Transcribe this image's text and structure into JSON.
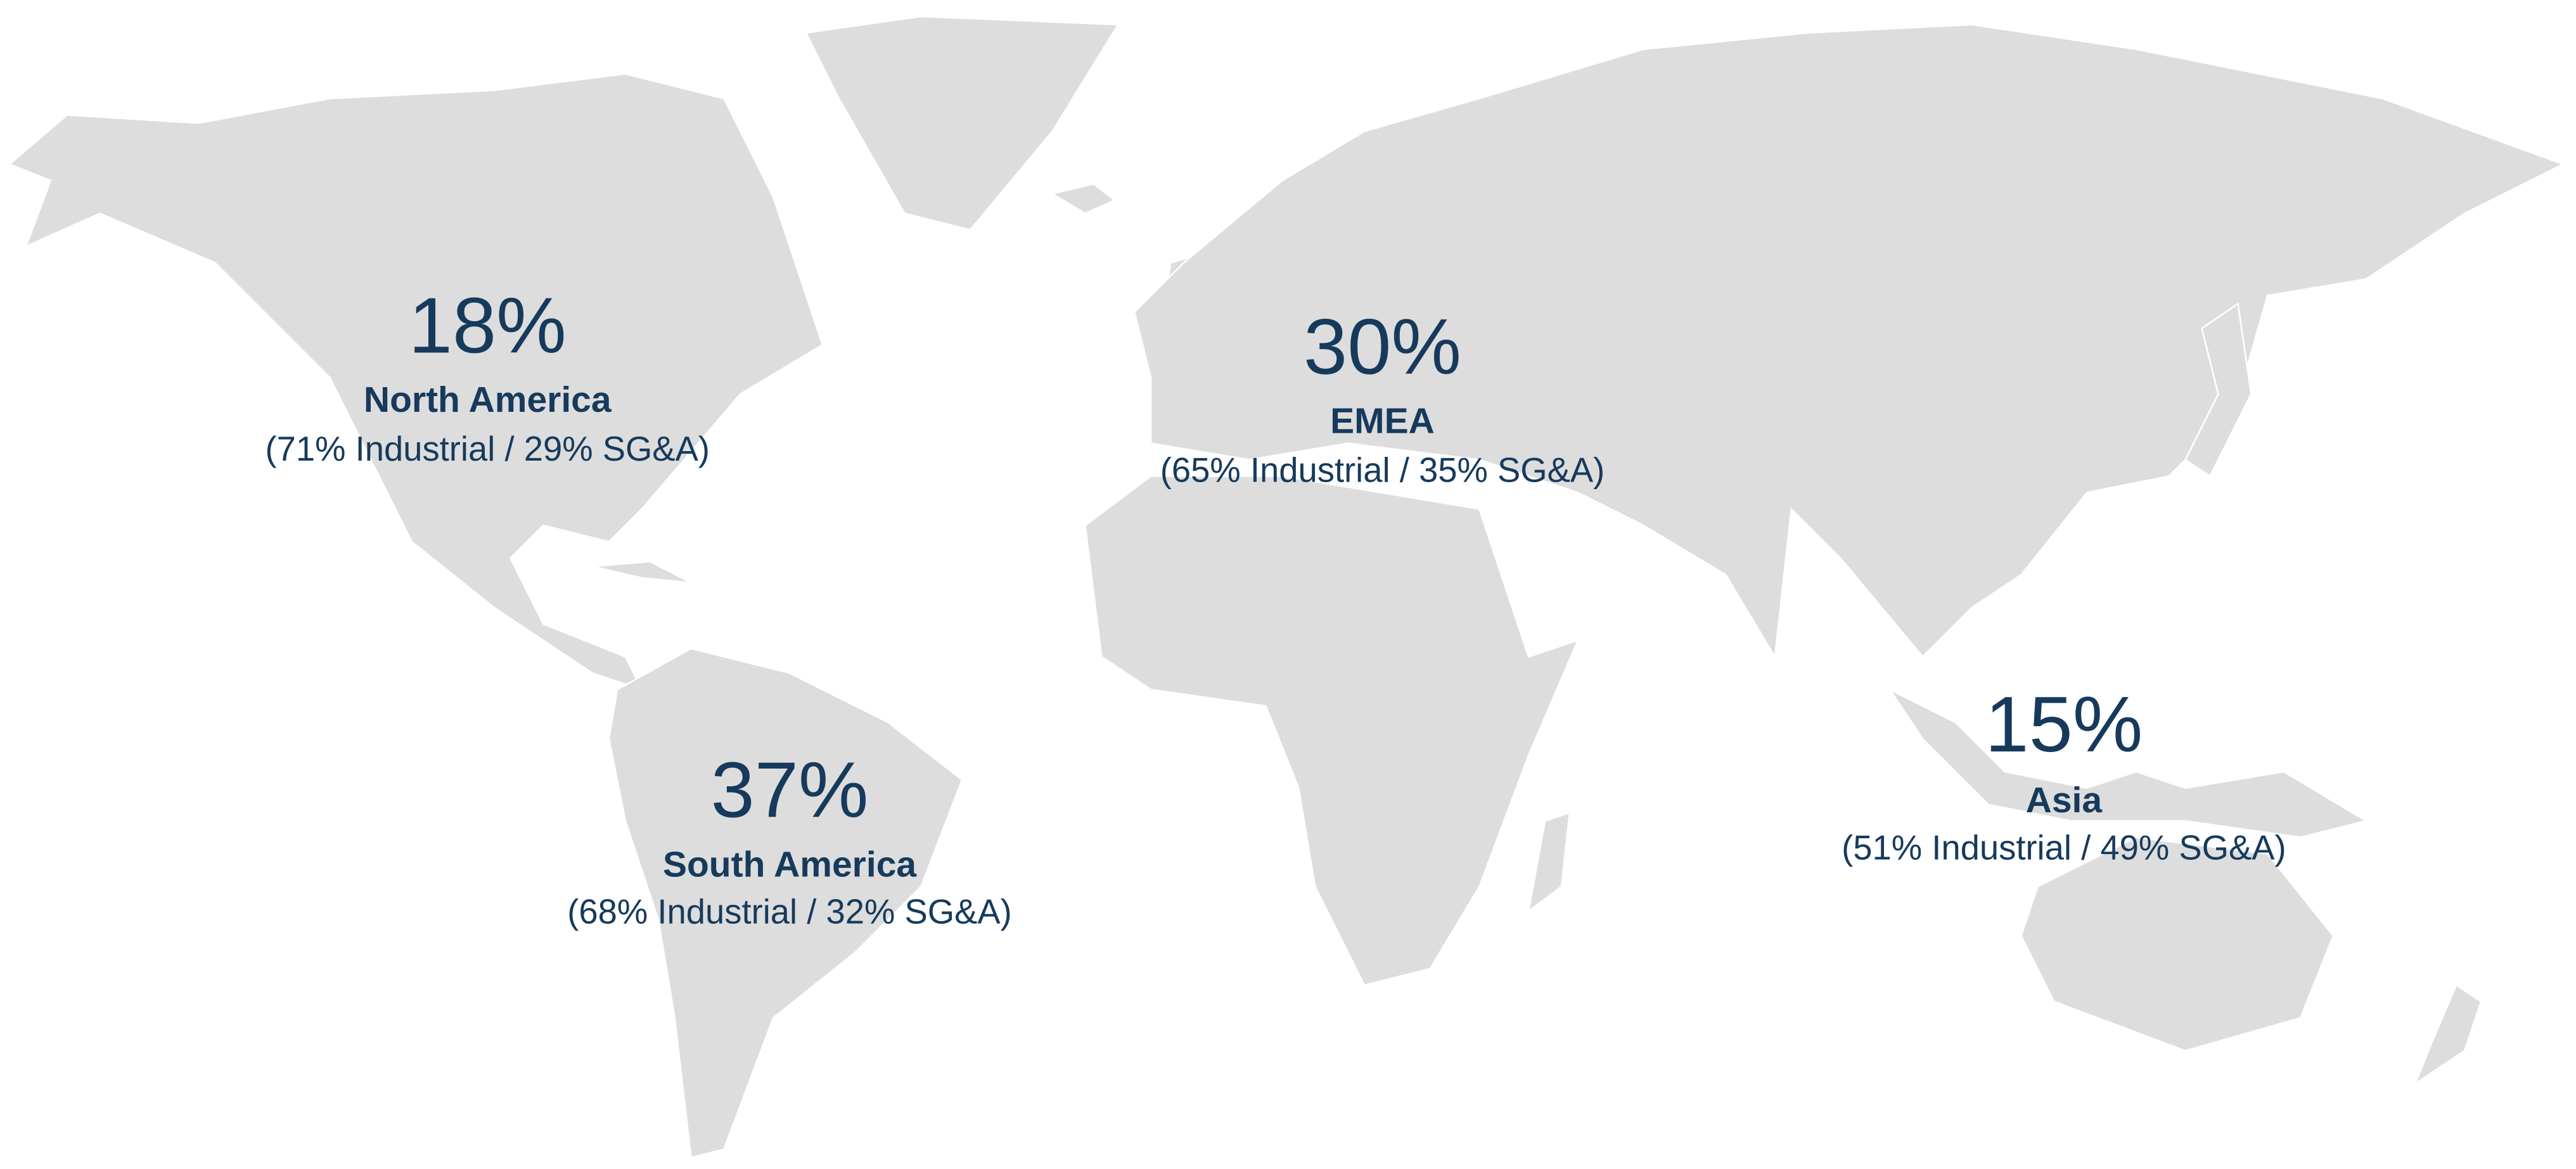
{
  "regions": [
    {
      "share": "18%",
      "name": "North America",
      "breakdown": "(71% Industrial / 29% SG&A)"
    },
    {
      "share": "30%",
      "name": "EMEA",
      "breakdown": "(65% Industrial / 35% SG&A)"
    },
    {
      "share": "37%",
      "name": "South America",
      "breakdown": "(68% Industrial / 32% SG&A)"
    },
    {
      "share": "15%",
      "name": "Asia",
      "breakdown": "(51% Industrial / 49% SG&A)"
    }
  ]
}
